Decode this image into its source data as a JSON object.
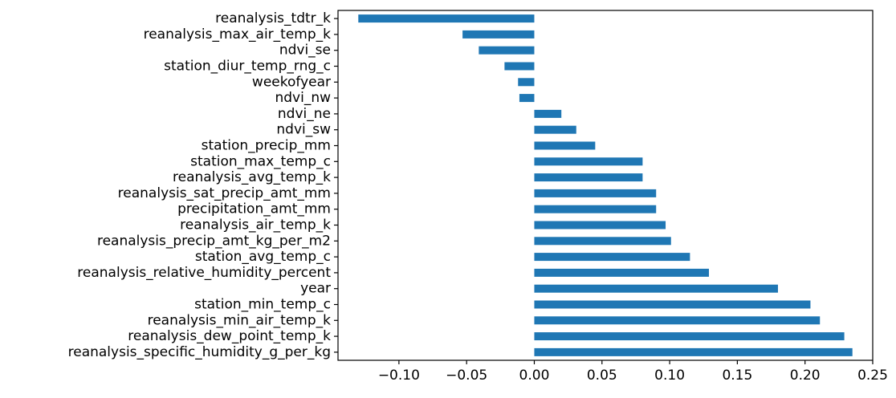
{
  "chart_data": {
    "type": "bar",
    "orientation": "horizontal",
    "title": "",
    "xlabel": "",
    "ylabel": "",
    "xlim": [
      -0.145,
      0.25
    ],
    "grid": false,
    "legend": "none",
    "bar_color": "#1f77b4",
    "categories": [
      "reanalysis_tdtr_k",
      "reanalysis_max_air_temp_k",
      "ndvi_se",
      "station_diur_temp_rng_c",
      "weekofyear",
      "ndvi_nw",
      "ndvi_ne",
      "ndvi_sw",
      "station_precip_mm",
      "station_max_temp_c",
      "reanalysis_avg_temp_k",
      "reanalysis_sat_precip_amt_mm",
      "precipitation_amt_mm",
      "reanalysis_air_temp_k",
      "reanalysis_precip_amt_kg_per_m2",
      "station_avg_temp_c",
      "reanalysis_relative_humidity_percent",
      "year",
      "station_min_temp_c",
      "reanalysis_min_air_temp_k",
      "reanalysis_dew_point_temp_k",
      "reanalysis_specific_humidity_g_per_kg"
    ],
    "values": [
      -0.13,
      -0.053,
      -0.041,
      -0.022,
      -0.012,
      -0.011,
      0.02,
      0.031,
      0.045,
      0.08,
      0.08,
      0.09,
      0.09,
      0.097,
      0.101,
      0.115,
      0.129,
      0.18,
      0.204,
      0.211,
      0.229,
      0.235
    ],
    "xticks": [
      -0.1,
      -0.05,
      0.0,
      0.05,
      0.1,
      0.15,
      0.2,
      0.25
    ],
    "xtick_labels": [
      "−0.10",
      "−0.05",
      "0.00",
      "0.05",
      "0.10",
      "0.15",
      "0.20",
      "0.25"
    ]
  }
}
